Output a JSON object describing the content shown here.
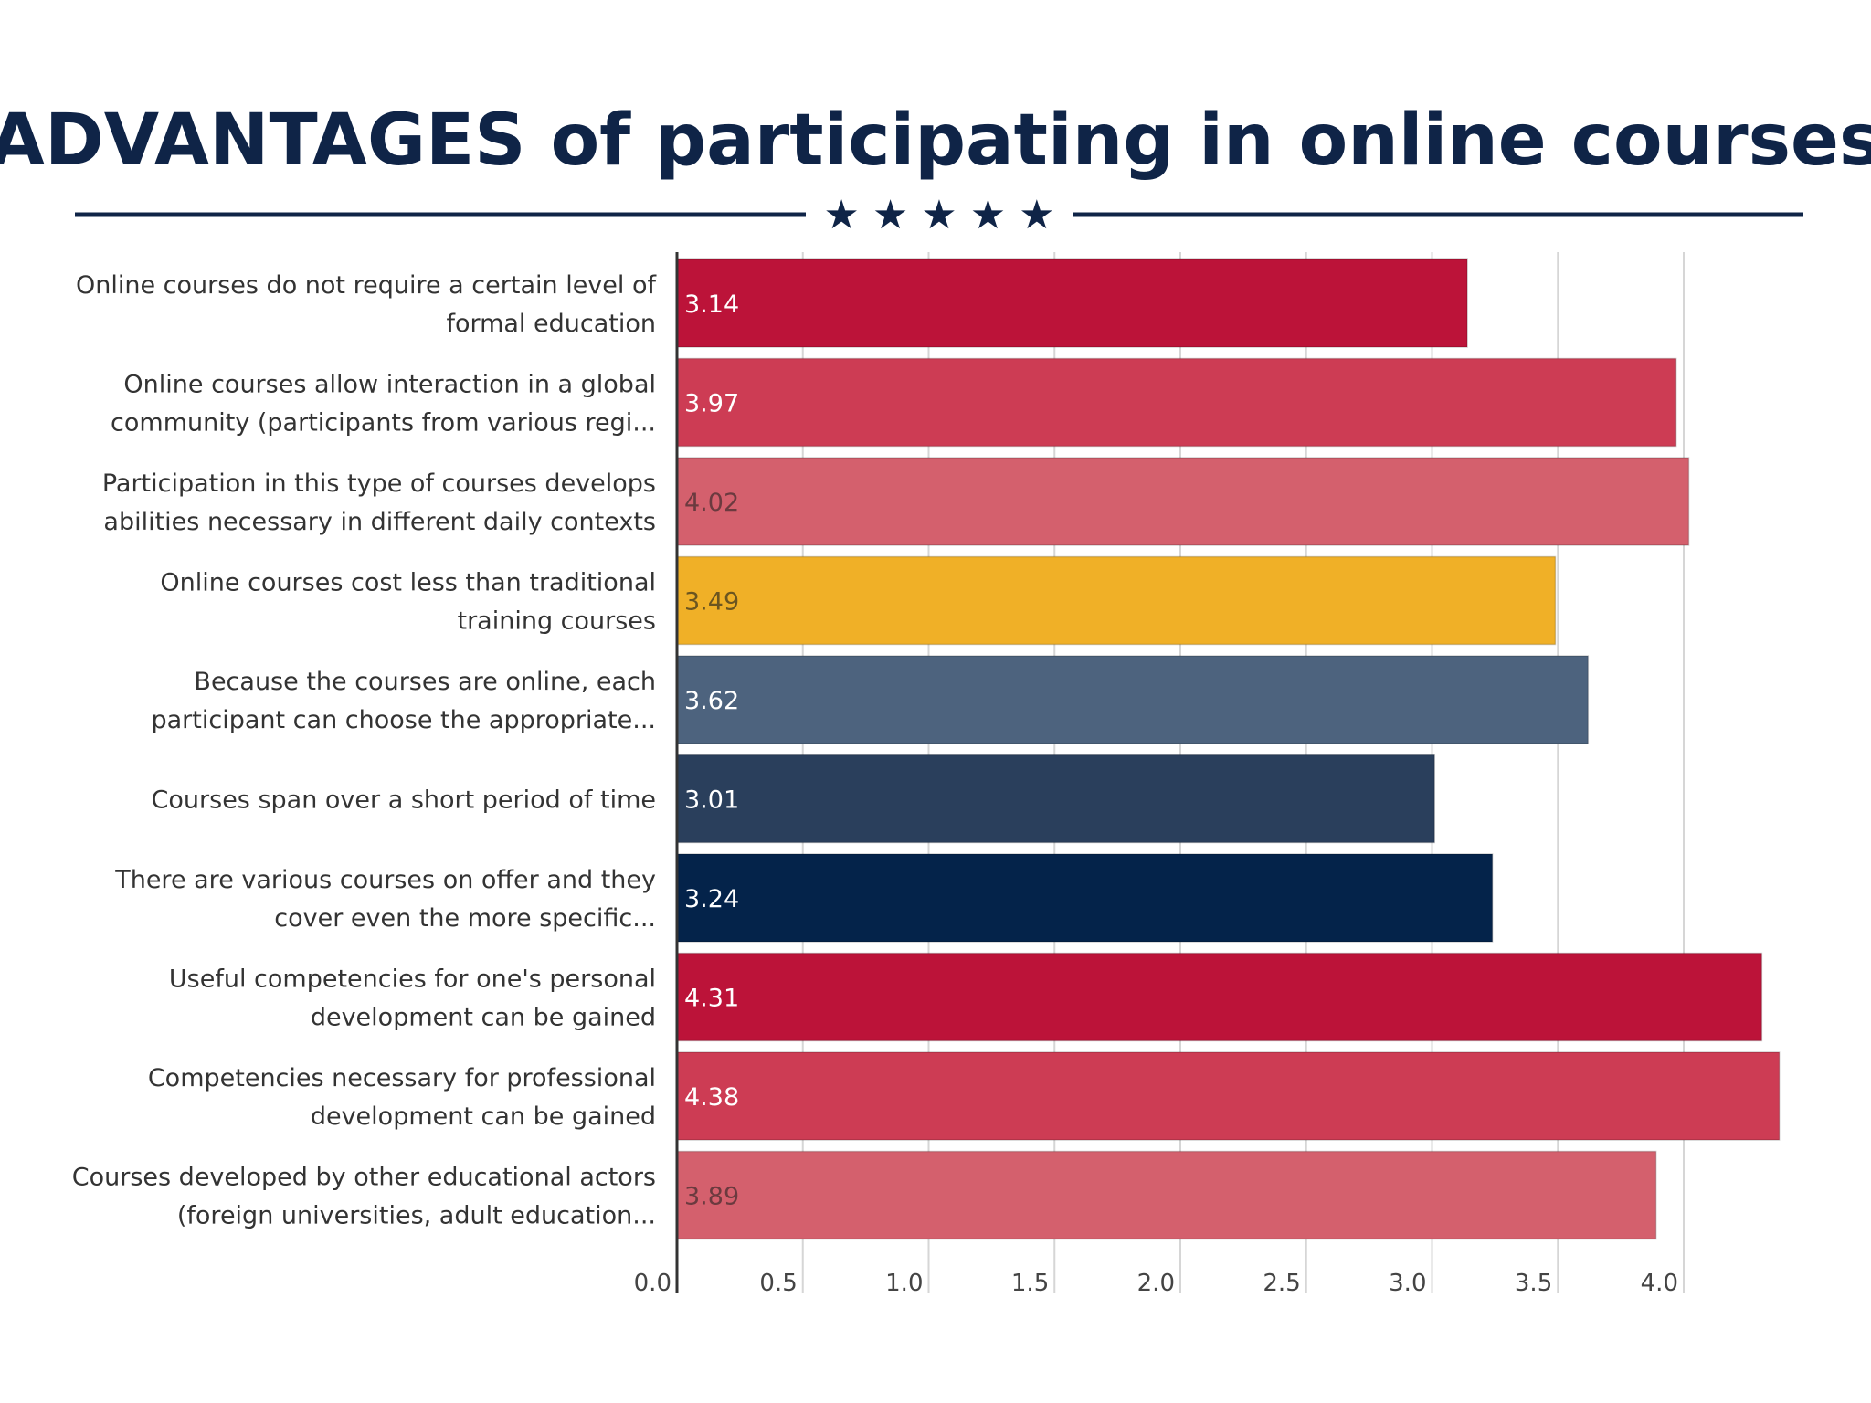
{
  "chart_data": {
    "type": "bar",
    "orientation": "horizontal",
    "title_bold": "ADVANTAGES",
    "title_rest": " of participating in online courses",
    "stars": "★ ★ ★ ★ ★",
    "categories": [
      [
        "Online courses do not require a certain level of",
        "formal education"
      ],
      [
        "Online courses allow interaction in a global",
        "community (participants from various regi..."
      ],
      [
        "Participation in this type of courses develops",
        "abilities necessary in different daily contexts"
      ],
      [
        "Online courses cost less than traditional",
        "training courses"
      ],
      [
        "Because the courses are online, each",
        "participant can choose the appropriate..."
      ],
      [
        "Courses span over a short period of time"
      ],
      [
        "There are various courses on offer and they",
        "cover even the more specific..."
      ],
      [
        "Useful competencies for one's personal",
        "development can be gained"
      ],
      [
        "Competencies necessary for professional",
        "development can be gained"
      ],
      [
        "Courses developed by other educational actors",
        "(foreign universities, adult education..."
      ]
    ],
    "values": [
      3.14,
      3.97,
      4.02,
      3.49,
      3.62,
      3.01,
      3.24,
      4.31,
      4.38,
      3.89
    ],
    "value_labels": [
      "3.14",
      "3.97",
      "4.02",
      "3.49",
      "3.62",
      "3.01",
      "3.24",
      "4.31",
      "4.38",
      "3.89"
    ],
    "bar_colors": [
      "#bc1339",
      "#cd3c54",
      "#d4606d",
      "#f0b027",
      "#4d637e",
      "#2a3f5c",
      "#04234a",
      "#bc1339",
      "#cd3c54",
      "#d4606d"
    ],
    "label_colors": [
      "#ffffff",
      "#ffffff",
      "#6b3a3f",
      "#6b5520",
      "#ffffff",
      "#ffffff",
      "#ffffff",
      "#ffffff",
      "#ffffff",
      "#6b3a3f"
    ],
    "x_ticks": [
      "0.0",
      "0.5",
      "1.0",
      "1.5",
      "2.0",
      "2.5",
      "3.0",
      "3.5",
      "4.0"
    ],
    "xlim": [
      0,
      4.4
    ],
    "grid": true,
    "legend": "none"
  }
}
